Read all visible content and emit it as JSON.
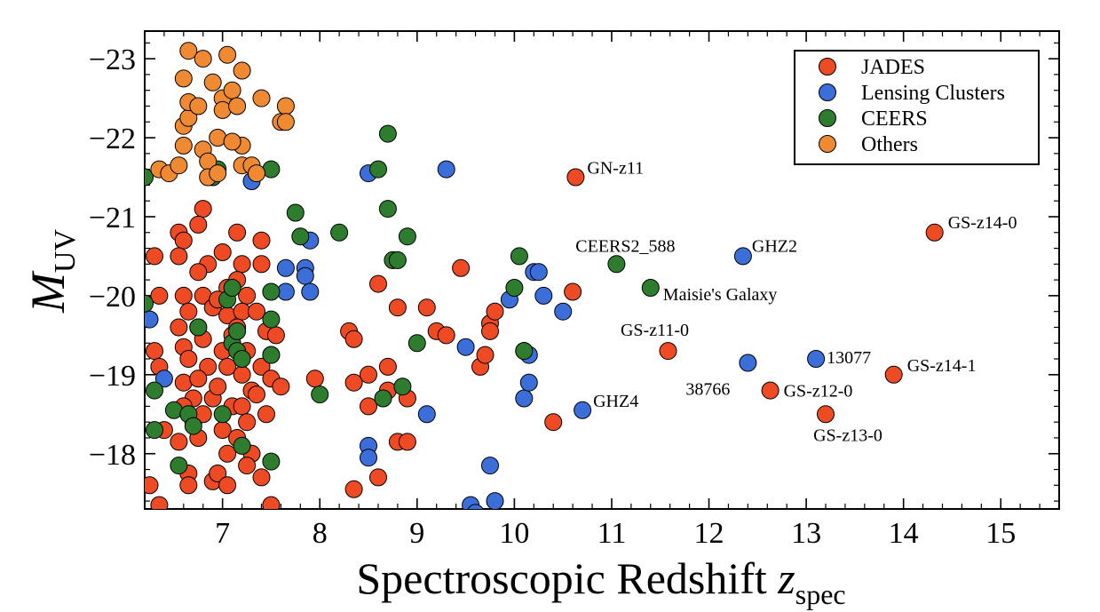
{
  "chart_data": {
    "type": "scatter",
    "xlabel": {
      "main": "Spectroscopic Redshift ",
      "var": "z",
      "sub": "spec"
    },
    "ylabel": {
      "var": "M",
      "sub": "UV"
    },
    "xlim": [
      6.2,
      15.6
    ],
    "ylim": [
      -17.3,
      -23.35
    ],
    "y_inverted": true,
    "x_ticks": [
      7,
      8,
      9,
      10,
      11,
      12,
      13,
      14,
      15
    ],
    "y_ticks": [
      -18,
      -19,
      -20,
      -21,
      -22,
      -23
    ],
    "y_tick_labels": [
      "−18",
      "−19",
      "−20",
      "−21",
      "−22",
      "−23"
    ],
    "legend": {
      "placement": "top-right",
      "entries": [
        "JADES",
        "Lensing Clusters",
        "CEERS",
        "Others"
      ]
    },
    "series": [
      {
        "name": "JADES",
        "color": "#ee4a23",
        "points": [
          [
            6.3,
            -20.5
          ],
          [
            6.35,
            -20.0
          ],
          [
            6.3,
            -19.3
          ],
          [
            6.35,
            -19.1
          ],
          [
            6.4,
            -18.3
          ],
          [
            6.25,
            -17.6
          ],
          [
            6.35,
            -17.35
          ],
          [
            6.55,
            -20.8
          ],
          [
            6.6,
            -20.7
          ],
          [
            6.55,
            -20.5
          ],
          [
            6.6,
            -20.0
          ],
          [
            6.65,
            -19.8
          ],
          [
            6.55,
            -19.6
          ],
          [
            6.6,
            -19.35
          ],
          [
            6.65,
            -19.2
          ],
          [
            6.6,
            -18.9
          ],
          [
            6.7,
            -18.7
          ],
          [
            6.6,
            -18.6
          ],
          [
            6.7,
            -18.4
          ],
          [
            6.55,
            -18.15
          ],
          [
            6.65,
            -17.75
          ],
          [
            6.65,
            -17.6
          ],
          [
            6.8,
            -21.1
          ],
          [
            6.75,
            -20.9
          ],
          [
            6.85,
            -20.4
          ],
          [
            6.75,
            -20.3
          ],
          [
            6.8,
            -20.0
          ],
          [
            6.9,
            -19.85
          ],
          [
            6.75,
            -19.6
          ],
          [
            6.8,
            -19.45
          ],
          [
            6.85,
            -19.1
          ],
          [
            6.75,
            -18.95
          ],
          [
            6.9,
            -18.7
          ],
          [
            6.8,
            -18.5
          ],
          [
            6.75,
            -18.2
          ],
          [
            6.9,
            -17.65
          ],
          [
            7.0,
            -20.55
          ],
          [
            7.05,
            -20.1
          ],
          [
            6.95,
            -19.95
          ],
          [
            7.05,
            -19.75
          ],
          [
            7.1,
            -19.5
          ],
          [
            7.0,
            -19.3
          ],
          [
            7.05,
            -19.1
          ],
          [
            6.95,
            -18.85
          ],
          [
            7.1,
            -18.6
          ],
          [
            7.0,
            -18.3
          ],
          [
            7.05,
            -18.0
          ],
          [
            6.95,
            -17.75
          ],
          [
            7.05,
            -17.6
          ],
          [
            7.15,
            -20.8
          ],
          [
            7.2,
            -20.4
          ],
          [
            7.15,
            -20.2
          ],
          [
            7.25,
            -20.0
          ],
          [
            7.2,
            -19.8
          ],
          [
            7.15,
            -19.6
          ],
          [
            7.25,
            -19.3
          ],
          [
            7.2,
            -19.0
          ],
          [
            7.3,
            -18.8
          ],
          [
            7.2,
            -18.6
          ],
          [
            7.25,
            -18.4
          ],
          [
            7.15,
            -18.2
          ],
          [
            7.3,
            -18.0
          ],
          [
            7.25,
            -17.85
          ],
          [
            7.4,
            -20.7
          ],
          [
            7.4,
            -20.4
          ],
          [
            7.35,
            -19.8
          ],
          [
            7.45,
            -19.55
          ],
          [
            7.5,
            -19.25
          ],
          [
            7.4,
            -19.1
          ],
          [
            7.35,
            -18.75
          ],
          [
            7.55,
            -19.5
          ],
          [
            7.5,
            -18.95
          ],
          [
            7.6,
            -18.85
          ],
          [
            7.45,
            -18.5
          ],
          [
            7.4,
            -17.7
          ],
          [
            7.5,
            -17.35
          ],
          [
            7.95,
            -18.95
          ],
          [
            8.3,
            -19.55
          ],
          [
            8.35,
            -19.45
          ],
          [
            8.35,
            -18.9
          ],
          [
            8.5,
            -19.0
          ],
          [
            8.5,
            -18.6
          ],
          [
            8.35,
            -17.55
          ],
          [
            8.6,
            -20.15
          ],
          [
            8.7,
            -19.1
          ],
          [
            8.7,
            -18.8
          ],
          [
            8.6,
            -17.7
          ],
          [
            8.8,
            -19.85
          ],
          [
            8.9,
            -18.7
          ],
          [
            8.8,
            -18.15
          ],
          [
            8.9,
            -18.15
          ],
          [
            9.1,
            -19.85
          ],
          [
            9.2,
            -19.55
          ],
          [
            9.3,
            -19.5
          ],
          [
            9.45,
            -20.35
          ],
          [
            9.65,
            -19.1
          ],
          [
            9.7,
            -19.25
          ],
          [
            9.75,
            -19.65
          ],
          [
            9.8,
            -19.8
          ],
          [
            9.75,
            -19.55
          ],
          [
            10.4,
            -18.4
          ],
          [
            10.6,
            -20.05
          ],
          [
            10.63,
            -21.5
          ],
          [
            11.58,
            -19.3
          ],
          [
            12.63,
            -18.8
          ],
          [
            13.2,
            -18.5
          ],
          [
            13.9,
            -19.0
          ],
          [
            14.32,
            -20.8
          ]
        ]
      },
      {
        "name": "Lensing Clusters",
        "color": "#3b6ed8",
        "points": [
          [
            6.25,
            -19.7
          ],
          [
            6.4,
            -18.95
          ],
          [
            7.3,
            -21.45
          ],
          [
            7.65,
            -20.35
          ],
          [
            7.65,
            -20.05
          ],
          [
            7.85,
            -20.35
          ],
          [
            7.85,
            -20.25
          ],
          [
            7.9,
            -20.7
          ],
          [
            7.9,
            -20.05
          ],
          [
            8.5,
            -21.55
          ],
          [
            8.5,
            -18.1
          ],
          [
            8.5,
            -17.95
          ],
          [
            9.1,
            -18.5
          ],
          [
            9.3,
            -21.6
          ],
          [
            9.5,
            -19.35
          ],
          [
            9.55,
            -17.35
          ],
          [
            9.6,
            -17.25
          ],
          [
            9.75,
            -17.85
          ],
          [
            9.8,
            -17.4
          ],
          [
            9.95,
            -19.95
          ],
          [
            10.1,
            -19.3
          ],
          [
            10.1,
            -18.7
          ],
          [
            10.15,
            -18.9
          ],
          [
            10.15,
            -19.25
          ],
          [
            10.2,
            -20.3
          ],
          [
            10.25,
            -20.3
          ],
          [
            10.3,
            -20.0
          ],
          [
            10.5,
            -19.8
          ],
          [
            10.7,
            -18.55
          ],
          [
            12.35,
            -20.5
          ],
          [
            12.4,
            -19.15
          ],
          [
            13.1,
            -19.2
          ]
        ]
      },
      {
        "name": "CEERS",
        "color": "#2e7d2e",
        "points": [
          [
            6.2,
            -21.5
          ],
          [
            6.2,
            -19.9
          ],
          [
            6.3,
            -18.8
          ],
          [
            6.3,
            -18.3
          ],
          [
            6.5,
            -18.55
          ],
          [
            6.55,
            -17.85
          ],
          [
            6.65,
            -18.5
          ],
          [
            6.7,
            -18.35
          ],
          [
            6.75,
            -19.6
          ],
          [
            6.9,
            -21.5
          ],
          [
            6.95,
            -21.6
          ],
          [
            7.0,
            -18.5
          ],
          [
            7.05,
            -19.95
          ],
          [
            7.1,
            -20.1
          ],
          [
            7.1,
            -19.4
          ],
          [
            7.15,
            -19.55
          ],
          [
            7.15,
            -19.3
          ],
          [
            7.2,
            -19.2
          ],
          [
            7.2,
            -18.1
          ],
          [
            7.5,
            -21.6
          ],
          [
            7.5,
            -20.05
          ],
          [
            7.5,
            -19.7
          ],
          [
            7.5,
            -19.25
          ],
          [
            7.5,
            -17.9
          ],
          [
            7.75,
            -21.05
          ],
          [
            7.8,
            -20.75
          ],
          [
            8.0,
            -18.75
          ],
          [
            8.2,
            -20.8
          ],
          [
            8.6,
            -21.6
          ],
          [
            8.65,
            -18.7
          ],
          [
            8.7,
            -22.05
          ],
          [
            8.7,
            -21.1
          ],
          [
            8.75,
            -20.45
          ],
          [
            8.8,
            -20.45
          ],
          [
            8.85,
            -18.85
          ],
          [
            8.9,
            -20.75
          ],
          [
            9.0,
            -19.4
          ],
          [
            10.05,
            -20.5
          ],
          [
            10.1,
            -19.3
          ],
          [
            10.0,
            -20.1
          ],
          [
            11.05,
            -20.4
          ],
          [
            11.4,
            -20.1
          ]
        ]
      },
      {
        "name": "Others",
        "color": "#f08a32",
        "points": [
          [
            6.35,
            -21.6
          ],
          [
            6.45,
            -21.55
          ],
          [
            6.55,
            -21.65
          ],
          [
            6.6,
            -21.9
          ],
          [
            6.6,
            -22.15
          ],
          [
            6.65,
            -22.25
          ],
          [
            6.6,
            -22.75
          ],
          [
            6.65,
            -22.45
          ],
          [
            6.65,
            -23.1
          ],
          [
            6.75,
            -22.4
          ],
          [
            6.8,
            -21.85
          ],
          [
            6.85,
            -21.7
          ],
          [
            6.85,
            -21.5
          ],
          [
            6.8,
            -23.0
          ],
          [
            6.9,
            -22.7
          ],
          [
            6.95,
            -22.0
          ],
          [
            6.95,
            -21.55
          ],
          [
            7.0,
            -22.5
          ],
          [
            7.0,
            -22.35
          ],
          [
            7.05,
            -23.05
          ],
          [
            7.1,
            -22.6
          ],
          [
            7.15,
            -22.4
          ],
          [
            7.2,
            -22.85
          ],
          [
            7.2,
            -21.9
          ],
          [
            7.1,
            -21.95
          ],
          [
            7.2,
            -21.65
          ],
          [
            7.3,
            -21.65
          ],
          [
            7.35,
            -21.55
          ],
          [
            7.4,
            -22.5
          ],
          [
            7.6,
            -22.2
          ],
          [
            7.65,
            -22.4
          ],
          [
            7.65,
            -22.2
          ]
        ]
      }
    ],
    "annotations": [
      {
        "text": "GN-z11",
        "x": 10.63,
        "y": -21.5,
        "anchor": "start",
        "dx": 13,
        "dy": -4
      },
      {
        "text": "CEERS2_588",
        "x": 11.05,
        "y": -20.4,
        "anchor": "middle",
        "dx": 10,
        "dy": -14
      },
      {
        "text": "GHZ2",
        "x": 12.35,
        "y": -20.5,
        "anchor": "start",
        "dx": 10,
        "dy": -5
      },
      {
        "text": "GS-z14-0",
        "x": 14.32,
        "y": -20.8,
        "anchor": "start",
        "dx": 15,
        "dy": -5
      },
      {
        "text": "Maisie's Galaxy",
        "x": 11.4,
        "y": -20.1,
        "anchor": "start",
        "dx": 14,
        "dy": 14
      },
      {
        "text": "GS-z11-0",
        "x": 11.58,
        "y": -19.3,
        "anchor": "middle",
        "dx": -15,
        "dy": -17
      },
      {
        "text": "13077",
        "x": 13.1,
        "y": -19.2,
        "anchor": "start",
        "dx": 12,
        "dy": 5
      },
      {
        "text": "GS-z14-1",
        "x": 13.9,
        "y": -19.0,
        "anchor": "start",
        "dx": 15,
        "dy": -4
      },
      {
        "text": "38766",
        "x": 12.4,
        "y": -19.15,
        "anchor": "end",
        "dx": -20,
        "dy": 36
      },
      {
        "text": "GS-z12-0",
        "x": 12.63,
        "y": -18.8,
        "anchor": "start",
        "dx": 15,
        "dy": 7
      },
      {
        "text": "GHZ4",
        "x": 10.7,
        "y": -18.55,
        "anchor": "start",
        "dx": 12,
        "dy": -4
      },
      {
        "text": "GS-z13-0",
        "x": 13.2,
        "y": -18.5,
        "anchor": "middle",
        "dx": 25,
        "dy": 30
      }
    ]
  }
}
